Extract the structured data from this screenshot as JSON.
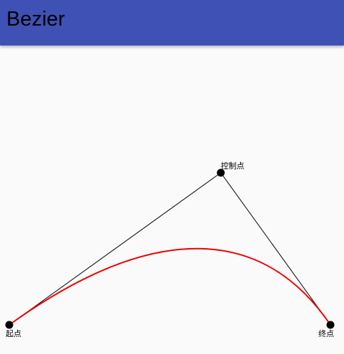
{
  "app_bar": {
    "title": "Bezier",
    "color": "#3f51b5"
  },
  "bezier": {
    "start_label": "起点",
    "control_label": "控制点",
    "end_label": "终点",
    "curve_color": "#ee0000",
    "line_color": "#000000",
    "point_color": "#000000"
  }
}
